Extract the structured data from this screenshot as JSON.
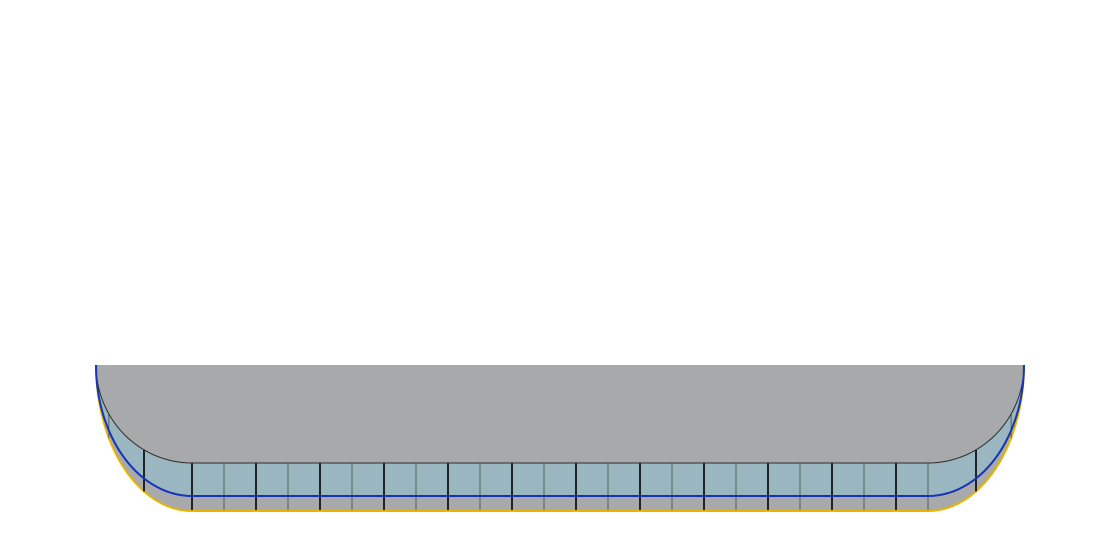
{
  "diagram": {
    "background_color": "#ffffff",
    "shape": "rounded trough section (straight run between two quarter-circle bends)",
    "straight_segment_count": 23,
    "bend_segment_count": 3,
    "major_divider_every": 2,
    "colors": {
      "panel_fill": "#9ab6c0",
      "base_fill": "#a7a9ab",
      "base_rim": "#e8b400",
      "waterline": "#1435b8",
      "minor_divider": "#3f4a4e",
      "major_divider": "#000000",
      "outline": "#2a2a2a"
    }
  }
}
